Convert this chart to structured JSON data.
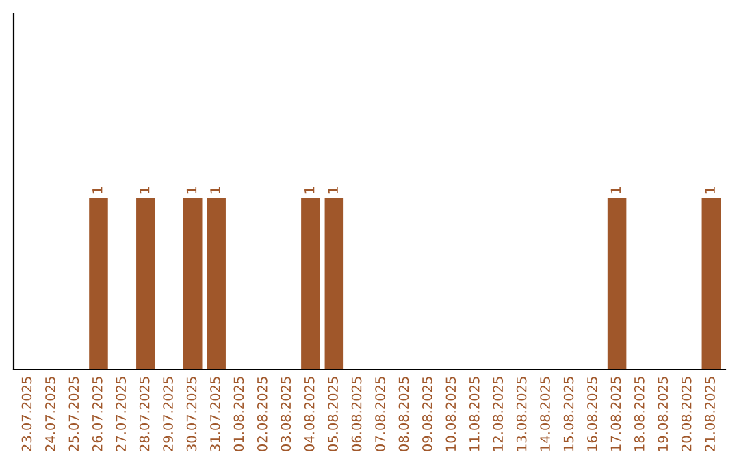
{
  "chart_data": {
    "type": "bar",
    "categories": [
      "23.07.2025",
      "24.07.2025",
      "25.07.2025",
      "26.07.2025",
      "27.07.2025",
      "28.07.2025",
      "29.07.2025",
      "30.07.2025",
      "31.07.2025",
      "01.08.2025",
      "02.08.2025",
      "03.08.2025",
      "04.08.2025",
      "05.08.2025",
      "06.08.2025",
      "07.08.2025",
      "08.08.2025",
      "09.08.2025",
      "10.08.2025",
      "11.08.2025",
      "12.08.2025",
      "13.08.2025",
      "14.08.2025",
      "15.08.2025",
      "16.08.2025",
      "17.08.2025",
      "18.08.2025",
      "19.08.2025",
      "20.08.2025",
      "21.08.2025"
    ],
    "values": [
      0,
      0,
      0,
      1,
      0,
      1,
      0,
      1,
      1,
      0,
      0,
      0,
      1,
      1,
      0,
      0,
      0,
      0,
      0,
      0,
      0,
      0,
      0,
      0,
      0,
      1,
      0,
      0,
      0,
      1
    ],
    "value_labels": [
      null,
      null,
      null,
      "1",
      null,
      "1",
      null,
      "1",
      "1",
      null,
      null,
      null,
      "1",
      "1",
      null,
      null,
      null,
      null,
      null,
      null,
      null,
      null,
      null,
      null,
      null,
      "1",
      null,
      null,
      null,
      "1"
    ],
    "color": "#a0572a",
    "ylim": [
      0,
      2.08
    ],
    "tick_labels": "x",
    "grid": false,
    "legend": false
  }
}
